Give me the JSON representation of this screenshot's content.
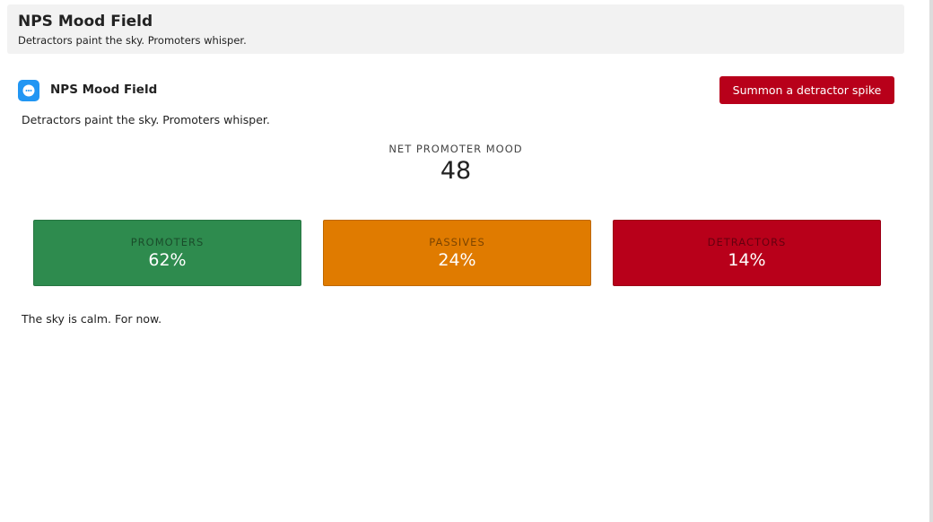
{
  "header": {
    "title": "NPS Mood Field",
    "subtitle": "Detractors paint the sky. Promoters whisper."
  },
  "card": {
    "title": "NPS Mood Field",
    "button": "Summon a detractor spike",
    "description": "Detractors paint the sky. Promoters whisper.",
    "metric": {
      "label": "NET PROMOTER MOOD",
      "value": 48
    },
    "tiles": [
      {
        "label": "PROMOTERS",
        "value": "62%"
      },
      {
        "label": "PASSIVES",
        "value": "24%"
      },
      {
        "label": "DETRACTORS",
        "value": "14%"
      }
    ],
    "status": "The sky is calm. For now."
  }
}
